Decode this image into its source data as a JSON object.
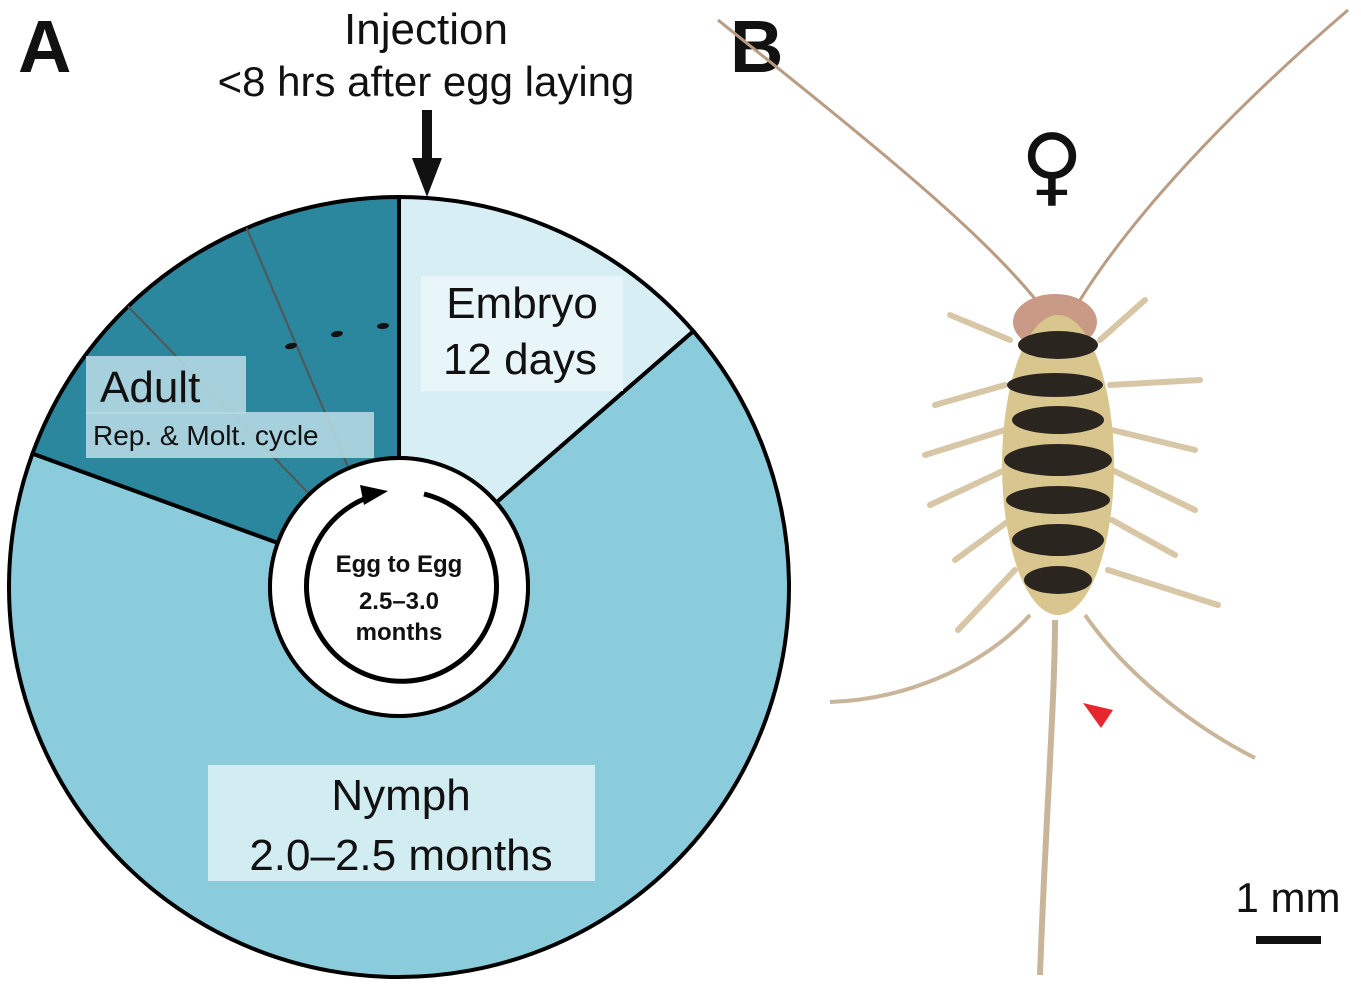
{
  "panels": {
    "a_letter": "A",
    "b_letter": "B"
  },
  "injection": {
    "title": "Injection",
    "subtitle": "<8 hrs after egg laying"
  },
  "segments": {
    "embryo": {
      "name": "Embryo",
      "duration": "12 days",
      "color": "#d6eef4"
    },
    "nymph": {
      "name": "Nymph",
      "duration": "2.0–2.5 months",
      "color": "#8accdc"
    },
    "adult": {
      "name": "Adult",
      "note": "Rep. & Molt. cycle",
      "color": "#2a879e"
    }
  },
  "center": {
    "line1": "Egg to Egg",
    "line2": "2.5–3.0",
    "line3": "months"
  },
  "photo": {
    "sex_symbol": "♀",
    "scale_label": "1 mm",
    "arrowhead_color": "#e8262f"
  }
}
